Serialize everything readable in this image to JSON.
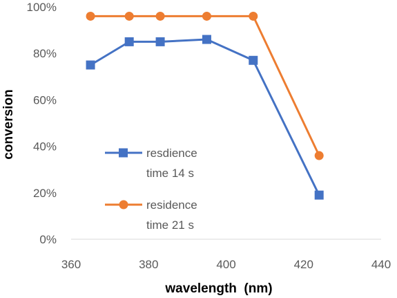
{
  "chart_data": {
    "type": "line",
    "xlabel": "wavelength  (nm)",
    "ylabel": "conversion",
    "xlim": [
      360,
      440
    ],
    "ylim": [
      0,
      100
    ],
    "x_ticks": [
      "360",
      "380",
      "400",
      "420",
      "440"
    ],
    "y_ticks": [
      "0%",
      "20%",
      "40%",
      "60%",
      "80%",
      "100%"
    ],
    "grid": false,
    "legend_position": "center-left inside plot",
    "series": [
      {
        "name_lines": [
          "resdience",
          "time 14 s"
        ],
        "color": "#4472C4",
        "marker": "square",
        "x": [
          365,
          375,
          383,
          395,
          407,
          424
        ],
        "y": [
          75,
          85,
          85,
          86,
          77,
          19
        ]
      },
      {
        "name_lines": [
          "residence",
          "time 21 s"
        ],
        "color": "#ED7D31",
        "marker": "circle",
        "x": [
          365,
          375,
          383,
          395,
          407,
          424
        ],
        "y": [
          96,
          96,
          96,
          96,
          96,
          36
        ]
      }
    ]
  }
}
